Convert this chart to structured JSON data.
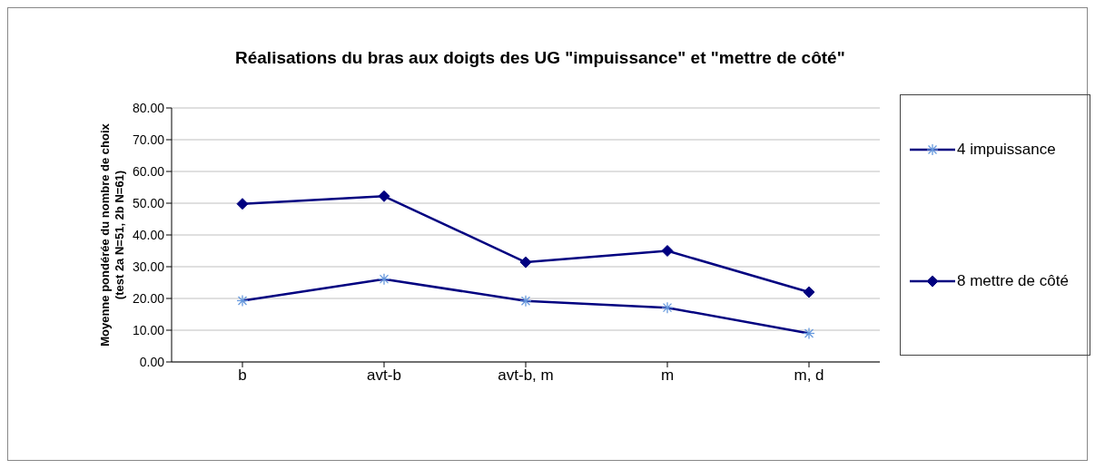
{
  "chart_data": {
    "type": "line",
    "title": "Réalisations du bras aux doigts des UG \"impuissance\" et \"mettre de côté\"",
    "ylabel": "Moyenne pondérée du nombre de choix\n(test 2a N=51, 2b N=61)",
    "categories": [
      "b",
      "avt-b",
      "avt-b, m",
      "m",
      "m, d"
    ],
    "series": [
      {
        "name": "4 impuissance",
        "color": "#000080",
        "marker": "cross",
        "values": [
          19.3,
          26.1,
          19.2,
          17.1,
          9.0
        ]
      },
      {
        "name": "8 mettre de côté",
        "color": "#000080",
        "marker": "diamond",
        "values": [
          49.8,
          52.2,
          31.4,
          35.0,
          22.0
        ]
      }
    ],
    "ylim": [
      0,
      80
    ],
    "yticks": [
      {
        "value": 0,
        "label": "0.00"
      },
      {
        "value": 10,
        "label": "10.00"
      },
      {
        "value": 20,
        "label": "20.00"
      },
      {
        "value": 30,
        "label": "30.00"
      },
      {
        "value": 40,
        "label": "40.00"
      },
      {
        "value": 50,
        "label": "50.00"
      },
      {
        "value": 60,
        "label": "60.00"
      },
      {
        "value": 70,
        "label": "70.00"
      },
      {
        "value": 80,
        "label": "80.00"
      }
    ],
    "grid": "y",
    "legend": "right"
  }
}
